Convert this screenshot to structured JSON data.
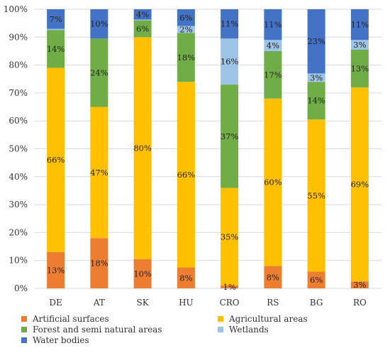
{
  "chart_data": {
    "type": "bar",
    "stacked": true,
    "categories": [
      "DE",
      "AT",
      "SK",
      "HU",
      "CRO",
      "RS",
      "BG",
      "RO"
    ],
    "series": [
      {
        "name": "Artificial surfaces",
        "color": "#ED7D31",
        "values": [
          13,
          18,
          10.5,
          7.5,
          1,
          8,
          6,
          2.5
        ],
        "labels": [
          "13%",
          "18%",
          "10%",
          "8%",
          "1%",
          "8%",
          "6%",
          "3%"
        ]
      },
      {
        "name": "Agricultural areas",
        "color": "#FFC000",
        "values": [
          66,
          47,
          79.5,
          66.5,
          35,
          60,
          54.5,
          69.5
        ],
        "labels": [
          "66%",
          "47%",
          "80%",
          "66%",
          "35%",
          "60%",
          "55%",
          "69%"
        ]
      },
      {
        "name": "Forest and semi natural areas",
        "color": "#70AD47",
        "values": [
          13.5,
          24.5,
          6,
          17.5,
          37,
          17,
          13.5,
          13.5
        ],
        "labels": [
          "14%",
          "24%",
          "6%",
          "18%",
          "37%",
          "17%",
          "14%",
          "13%"
        ]
      },
      {
        "name": "Wetlands",
        "color": "#9DC3E6",
        "values": [
          0.5,
          0,
          0.3,
          2.5,
          16.5,
          4,
          3,
          3.5
        ],
        "labels": [
          "",
          "",
          "",
          "2%",
          "16%",
          "4%",
          "3%",
          "3%"
        ]
      },
      {
        "name": "Water bodies",
        "color": "#4472C4",
        "values": [
          7,
          10.5,
          3.7,
          6,
          10.5,
          11,
          23,
          11
        ],
        "labels": [
          "7%",
          "10%",
          "4%",
          "6%",
          "11%",
          "11%",
          "23%",
          "11%"
        ]
      }
    ],
    "y_ticks": [
      "0%",
      "10%",
      "20%",
      "30%",
      "40%",
      "50%",
      "60%",
      "70%",
      "80%",
      "90%",
      "100%"
    ],
    "ylim": [
      0,
      100
    ],
    "grid": true,
    "legend_position": "bottom"
  }
}
